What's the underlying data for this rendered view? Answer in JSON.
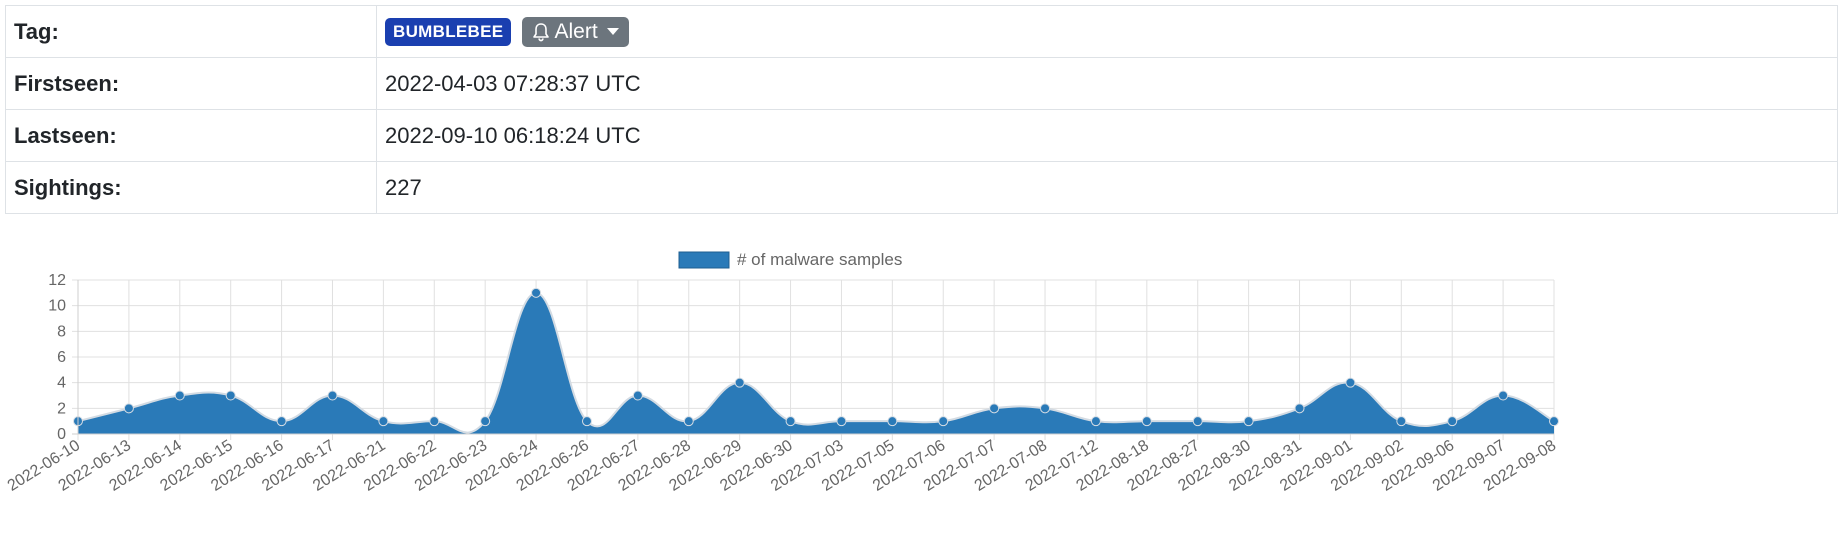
{
  "info": {
    "tag_label": "Tag:",
    "tag_badge": "BUMBLEBEE",
    "alert_label": "Alert",
    "firstseen_label": "Firstseen:",
    "firstseen_value": "2022-04-03 07:28:37 UTC",
    "lastseen_label": "Lastseen:",
    "lastseen_value": "2022-09-10 06:18:24 UTC",
    "sightings_label": "Sightings:",
    "sightings_value": "227"
  },
  "colors": {
    "badge": "#1a3fb0",
    "alert_button": "#6c757d",
    "series_fill": "#2a7ab8"
  },
  "icons": {
    "alert": "bell-icon",
    "dropdown": "caret-down-icon"
  },
  "chart_data": {
    "type": "area",
    "x": [
      "2022-06-10",
      "2022-06-13",
      "2022-06-14",
      "2022-06-15",
      "2022-06-16",
      "2022-06-17",
      "2022-06-21",
      "2022-06-22",
      "2022-06-23",
      "2022-06-24",
      "2022-06-26",
      "2022-06-27",
      "2022-06-28",
      "2022-06-29",
      "2022-06-30",
      "2022-07-03",
      "2022-07-05",
      "2022-07-06",
      "2022-07-07",
      "2022-07-08",
      "2022-07-12",
      "2022-08-18",
      "2022-08-27",
      "2022-08-30",
      "2022-08-31",
      "2022-09-01",
      "2022-09-02",
      "2022-09-06",
      "2022-09-07",
      "2022-09-08"
    ],
    "series": [
      {
        "name": "# of malware samples",
        "values": [
          1,
          2,
          3,
          3,
          1,
          3,
          1,
          1,
          1,
          11,
          1,
          3,
          1,
          4,
          1,
          1,
          1,
          1,
          2,
          2,
          1,
          1,
          1,
          1,
          2,
          4,
          1,
          1,
          3,
          1
        ]
      }
    ],
    "ylim": [
      0,
      12
    ],
    "yticks": [
      0,
      2,
      4,
      6,
      8,
      10,
      12
    ],
    "grid": true,
    "legend": "top-center"
  }
}
